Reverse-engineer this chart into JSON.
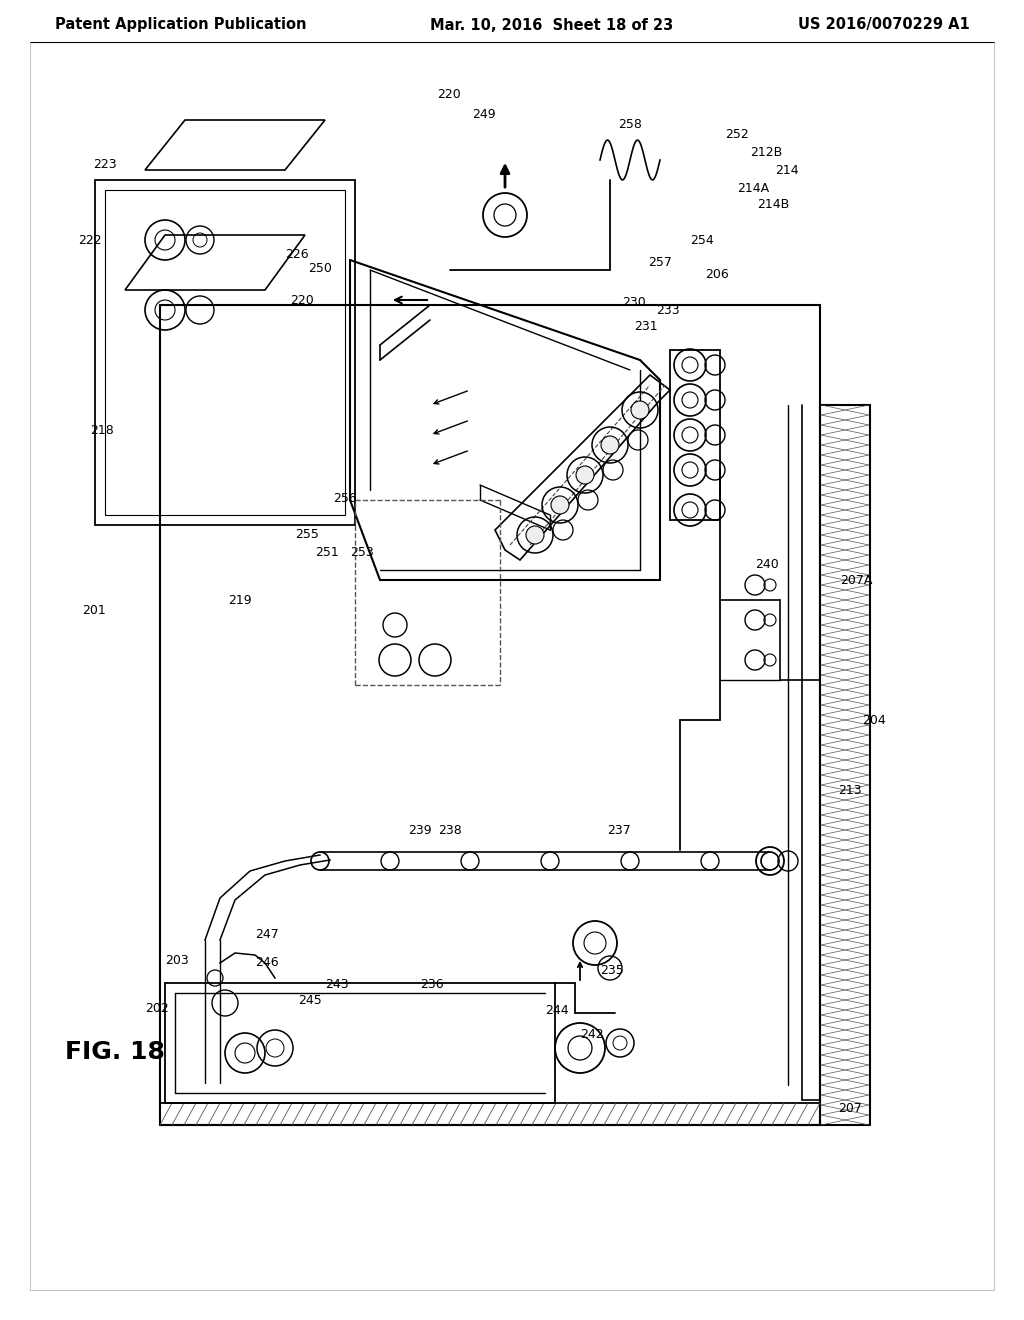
{
  "bg_color": "#ffffff",
  "header_left": "Patent Application Publication",
  "header_mid": "Mar. 10, 2016  Sheet 18 of 23",
  "header_right": "US 2016/0070229 A1",
  "fig_label": "FIG. 18",
  "header_fontsize": 10.5,
  "label_fontsize": 9,
  "fig_label_fontsize": 18,
  "line_color": "#000000"
}
